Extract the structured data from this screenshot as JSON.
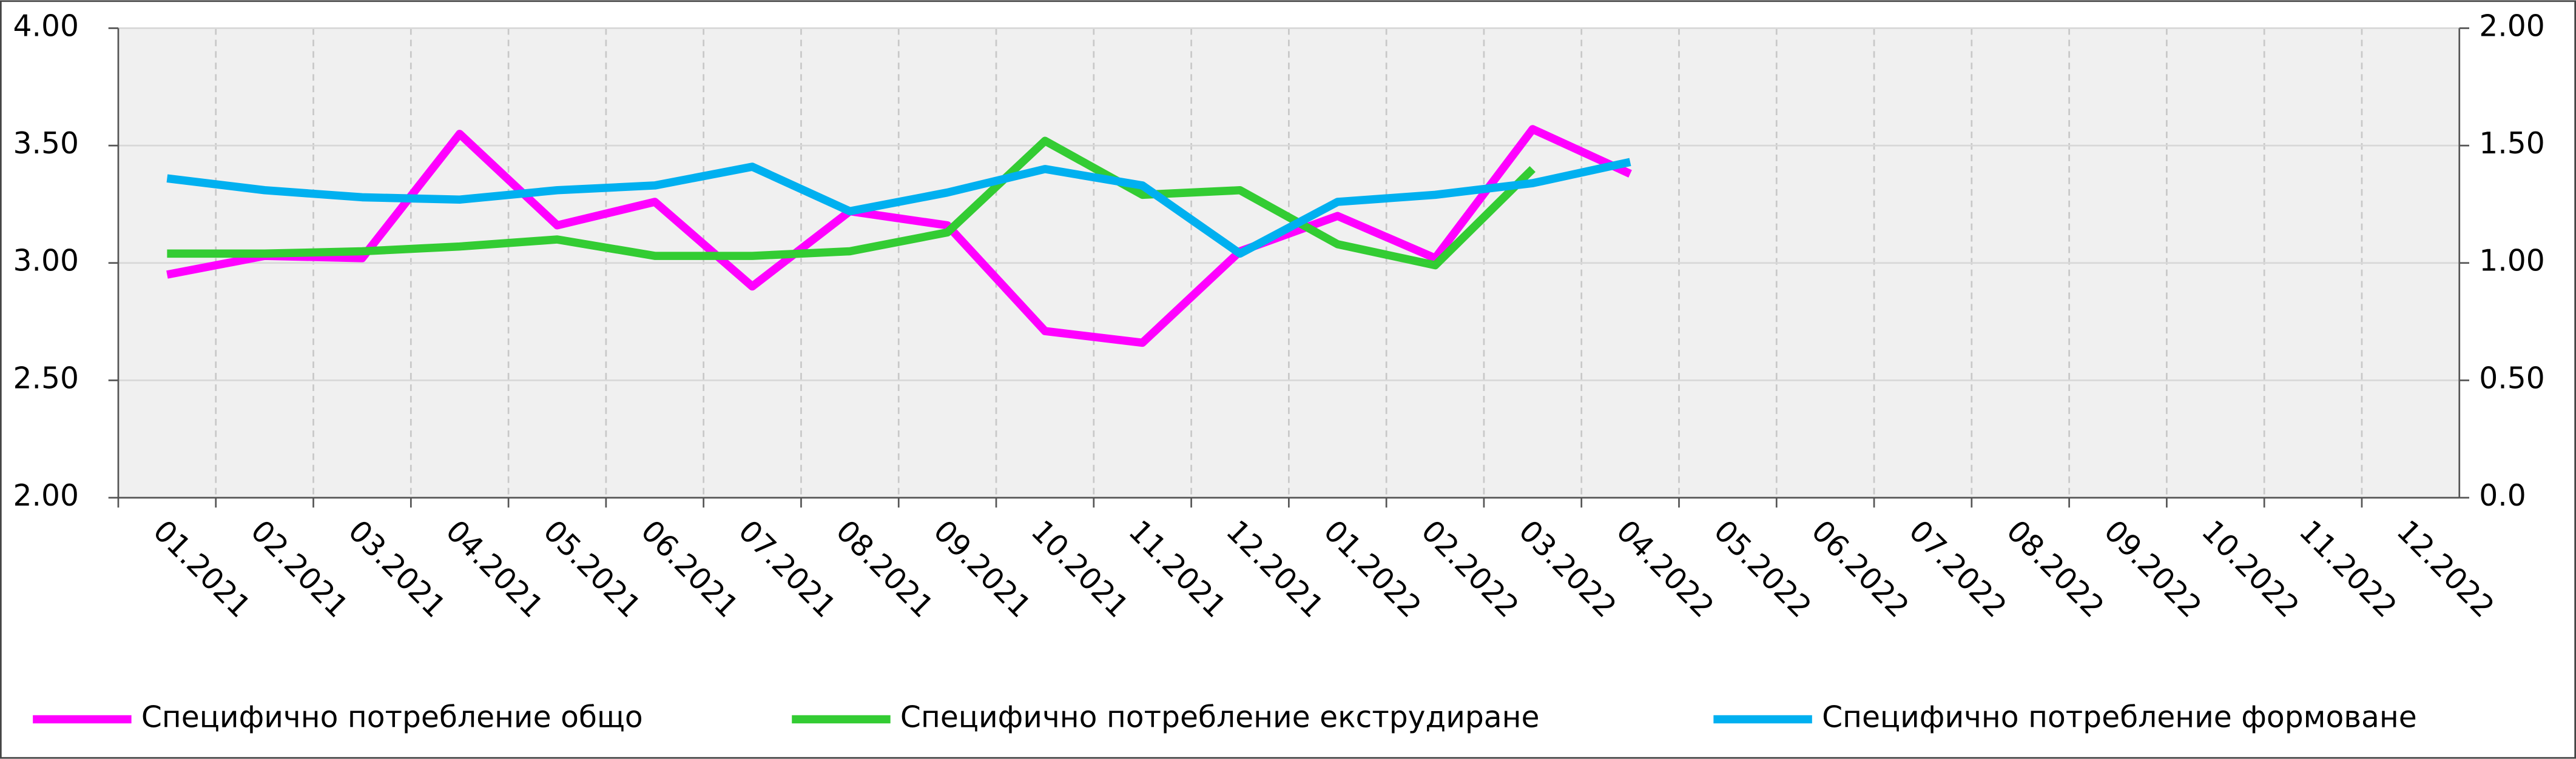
{
  "chart_data": {
    "type": "line",
    "categories": [
      "01.2021",
      "02.2021",
      "03.2021",
      "04.2021",
      "05.2021",
      "06.2021",
      "07.2021",
      "08.2021",
      "09.2021",
      "10.2021",
      "11.2021",
      "12.2021",
      "01.2022",
      "02.2022",
      "03.2022",
      "04.2022",
      "05.2022",
      "06.2022",
      "07.2022",
      "08.2022",
      "09.2022",
      "10.2022",
      "11.2022",
      "12.2022"
    ],
    "series": [
      {
        "name": "Специфично потребление общо",
        "color": "#ff00ff",
        "values": [
          2.95,
          3.03,
          3.02,
          3.55,
          3.16,
          3.26,
          2.9,
          3.22,
          3.16,
          2.71,
          2.66,
          3.05,
          3.2,
          3.02,
          3.57,
          3.38,
          null,
          null,
          null,
          null,
          null,
          null,
          null,
          null
        ]
      },
      {
        "name": "Специфично потребление екструдиране",
        "color": "#33cc33",
        "values": [
          3.04,
          3.04,
          3.05,
          3.07,
          3.1,
          3.03,
          3.03,
          3.05,
          3.13,
          3.52,
          3.29,
          3.31,
          3.08,
          2.99,
          3.4,
          null,
          null,
          null,
          null,
          null,
          null,
          null,
          null,
          null
        ]
      },
      {
        "name": "Специфично потребление формоване",
        "color": "#00b0f0",
        "values": [
          3.36,
          3.31,
          3.28,
          3.27,
          3.31,
          3.33,
          3.41,
          3.22,
          3.3,
          3.4,
          3.33,
          3.04,
          3.26,
          3.29,
          3.34,
          3.43,
          null,
          null,
          null,
          null,
          null,
          null,
          null,
          null
        ]
      }
    ],
    "ylim": [
      2,
      4
    ],
    "yticks": [
      {
        "value": 2,
        "label": "2.00"
      },
      {
        "value": 2.5,
        "label": "2.50"
      },
      {
        "value": 3,
        "label": "3.00"
      },
      {
        "value": 3.5,
        "label": "3.50"
      },
      {
        "value": 4,
        "label": "4.00"
      }
    ],
    "y2lim": [
      0,
      2
    ],
    "y2ticks": [
      {
        "value": 0,
        "label": "0.0"
      },
      {
        "value": 0.5,
        "label": "0.50"
      },
      {
        "value": 1,
        "label": "1.00"
      },
      {
        "value": 1.5,
        "label": "1.50"
      },
      {
        "value": 2,
        "label": "2.00"
      }
    ],
    "grid": true
  }
}
